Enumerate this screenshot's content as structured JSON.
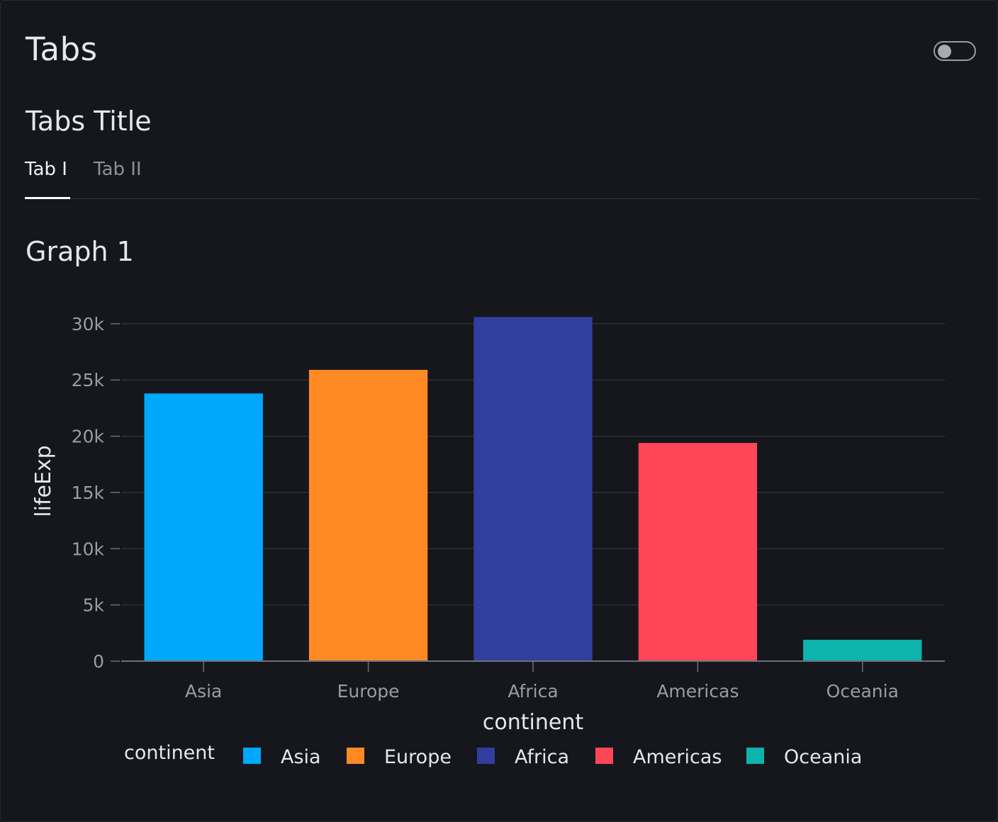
{
  "header": {
    "title": "Tabs",
    "toggle_on": false
  },
  "tabs_container": {
    "title": "Tabs Title",
    "tabs": [
      {
        "label": "Tab I",
        "active": true
      },
      {
        "label": "Tab II",
        "active": false
      }
    ]
  },
  "graph": {
    "title": "Graph 1"
  },
  "chart_data": {
    "type": "bar",
    "categories": [
      "Asia",
      "Europe",
      "Africa",
      "Americas",
      "Oceania"
    ],
    "values": [
      23800,
      25900,
      30600,
      19400,
      1900
    ],
    "colors": [
      "#00a8fb",
      "#ff8a23",
      "#313e9f",
      "#ff4658",
      "#0db3ad"
    ],
    "xlabel": "continent",
    "ylabel": "lifeExp",
    "ylim": [
      0,
      31000
    ],
    "yticks": [
      0,
      5000,
      10000,
      15000,
      20000,
      25000,
      30000
    ],
    "ytick_labels": [
      "0",
      "5k",
      "10k",
      "15k",
      "20k",
      "25k",
      "30k"
    ],
    "grid": true,
    "legend": {
      "title": "continent",
      "position": "bottom",
      "entries": [
        "Asia",
        "Europe",
        "Africa",
        "Americas",
        "Oceania"
      ]
    }
  }
}
